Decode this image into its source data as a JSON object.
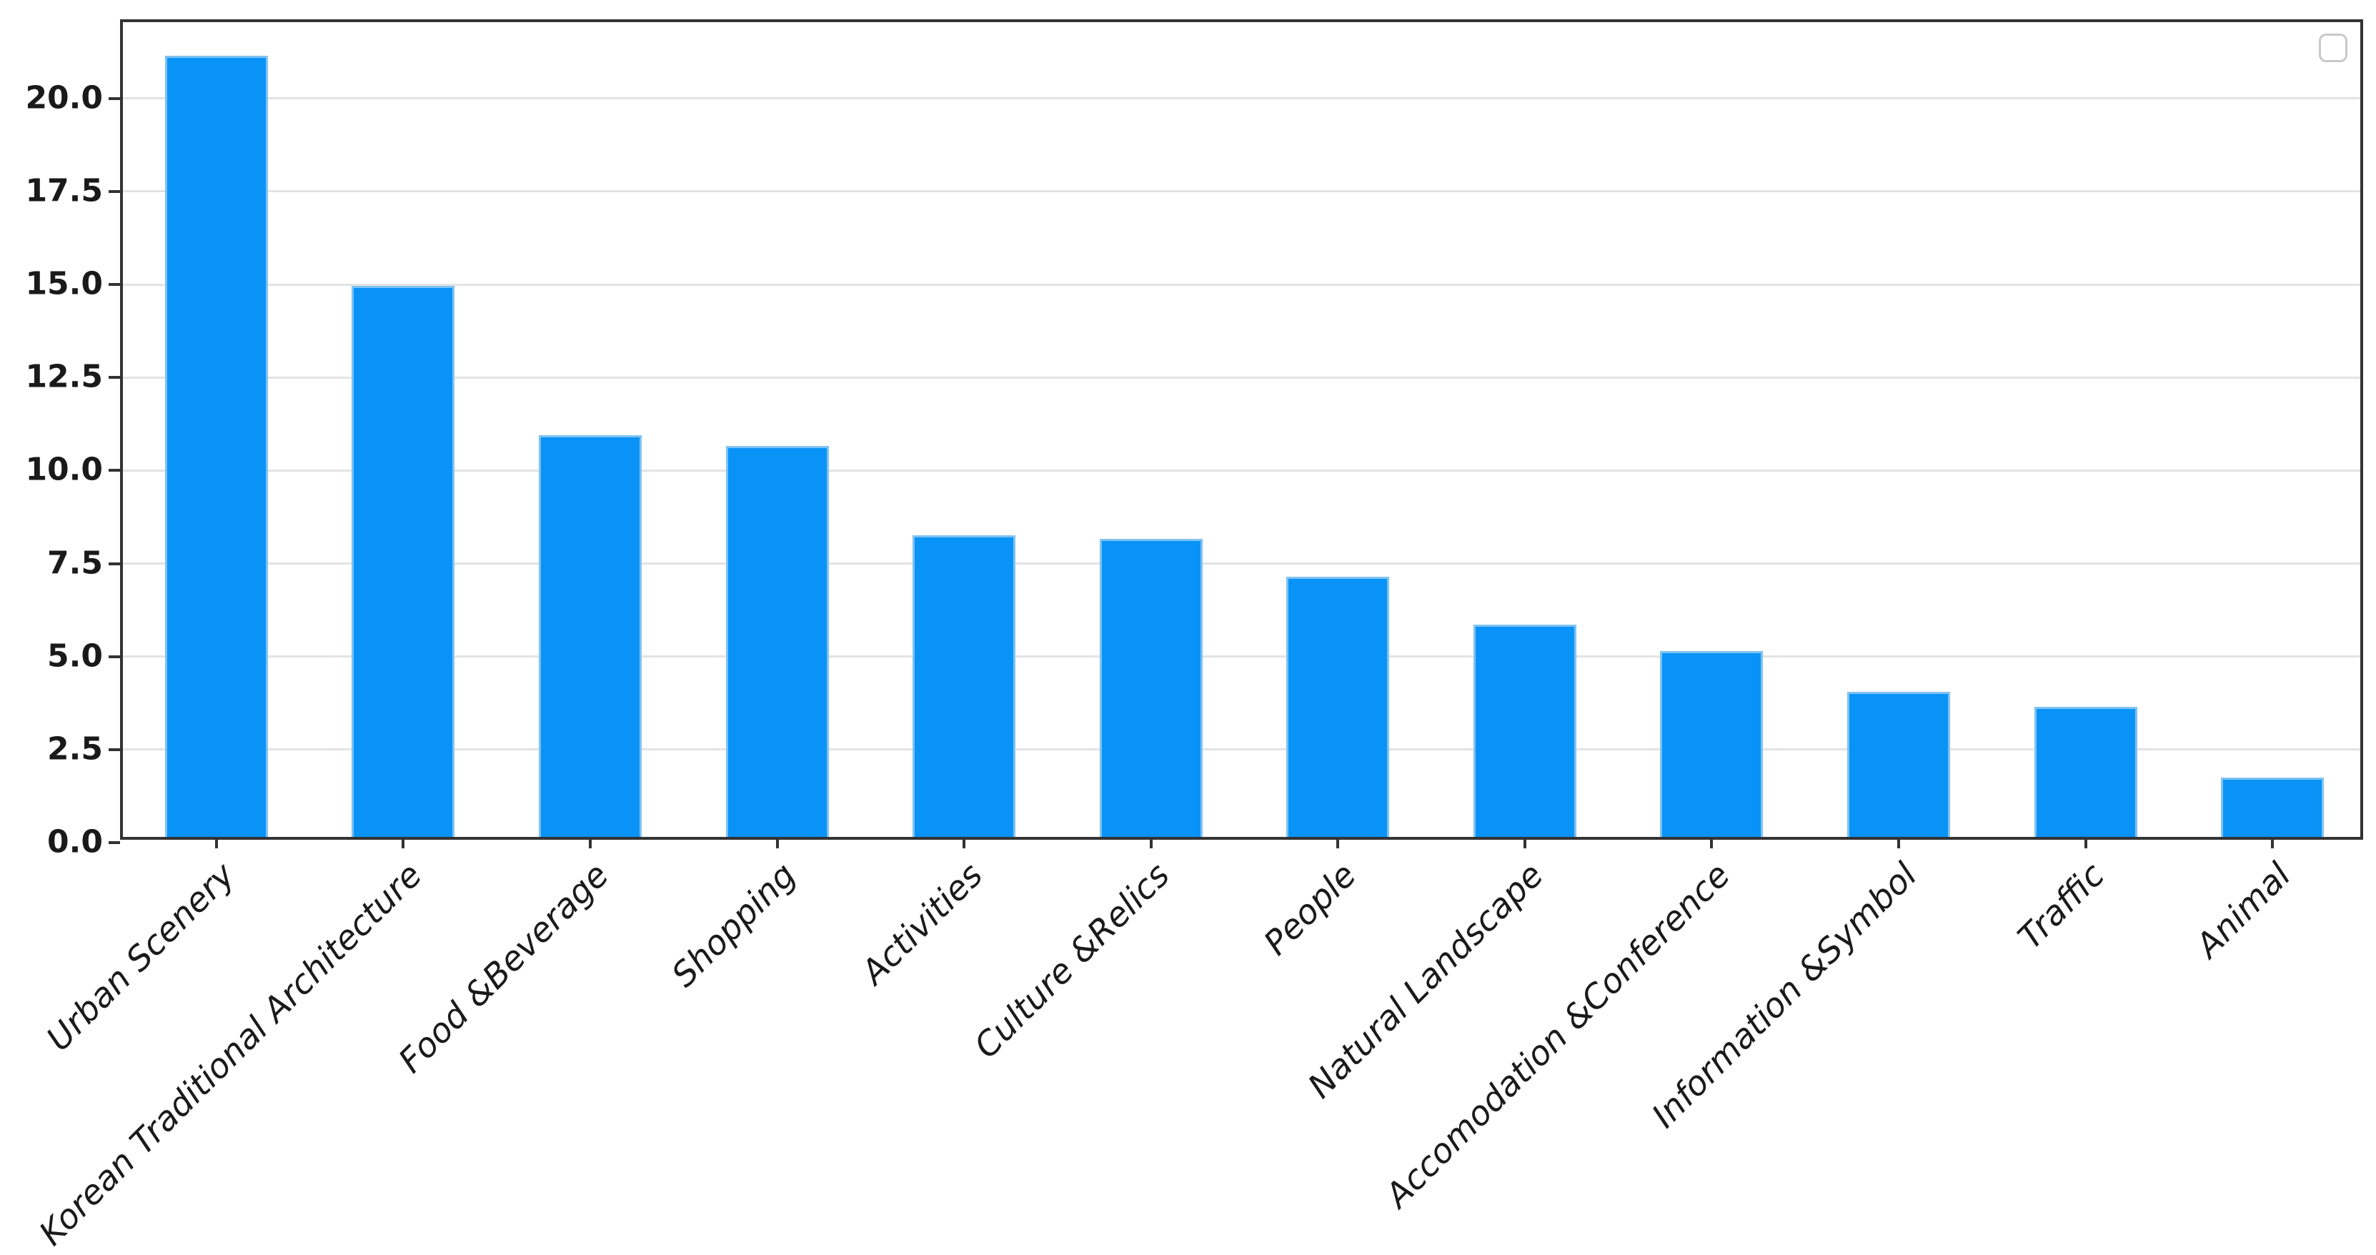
{
  "chart_data": {
    "type": "bar",
    "title": "",
    "xlabel": "",
    "ylabel": "",
    "categories": [
      "Urban Scenery",
      "Korean Traditional Architecture",
      "Food &Beverage",
      "Shopping",
      "Activities",
      "Culture &Relics",
      "People",
      "Natural Landscape",
      "Accomodation &Conference",
      "Information &Symbol",
      "Traffic",
      "Animal"
    ],
    "values": [
      21.0,
      14.8,
      10.8,
      10.5,
      8.1,
      8.0,
      7.0,
      5.7,
      5.0,
      3.9,
      3.5,
      1.6
    ],
    "ylim": [
      0,
      22.05
    ],
    "yticks": [
      0.0,
      2.5,
      5.0,
      7.5,
      10.0,
      12.5,
      15.0,
      17.5,
      20.0
    ],
    "ytick_labels": [
      "0.0",
      "2.5",
      "5.0",
      "7.5",
      "10.0",
      "12.5",
      "15.0",
      "17.5",
      "20.0"
    ],
    "grid": "horizontal-only",
    "x_tick_rotation": 45,
    "legend": {
      "visible": true,
      "position": "upper-right",
      "entries": []
    },
    "colors": {
      "bar_fill": "#0993f7",
      "bar_edge": "#7ec2f2",
      "gridline": "#e3e3e3",
      "spine": "#333333",
      "tick_label": "#1a1a1a",
      "legend_border": "#c9c9c9",
      "background": "#ffffff"
    }
  }
}
